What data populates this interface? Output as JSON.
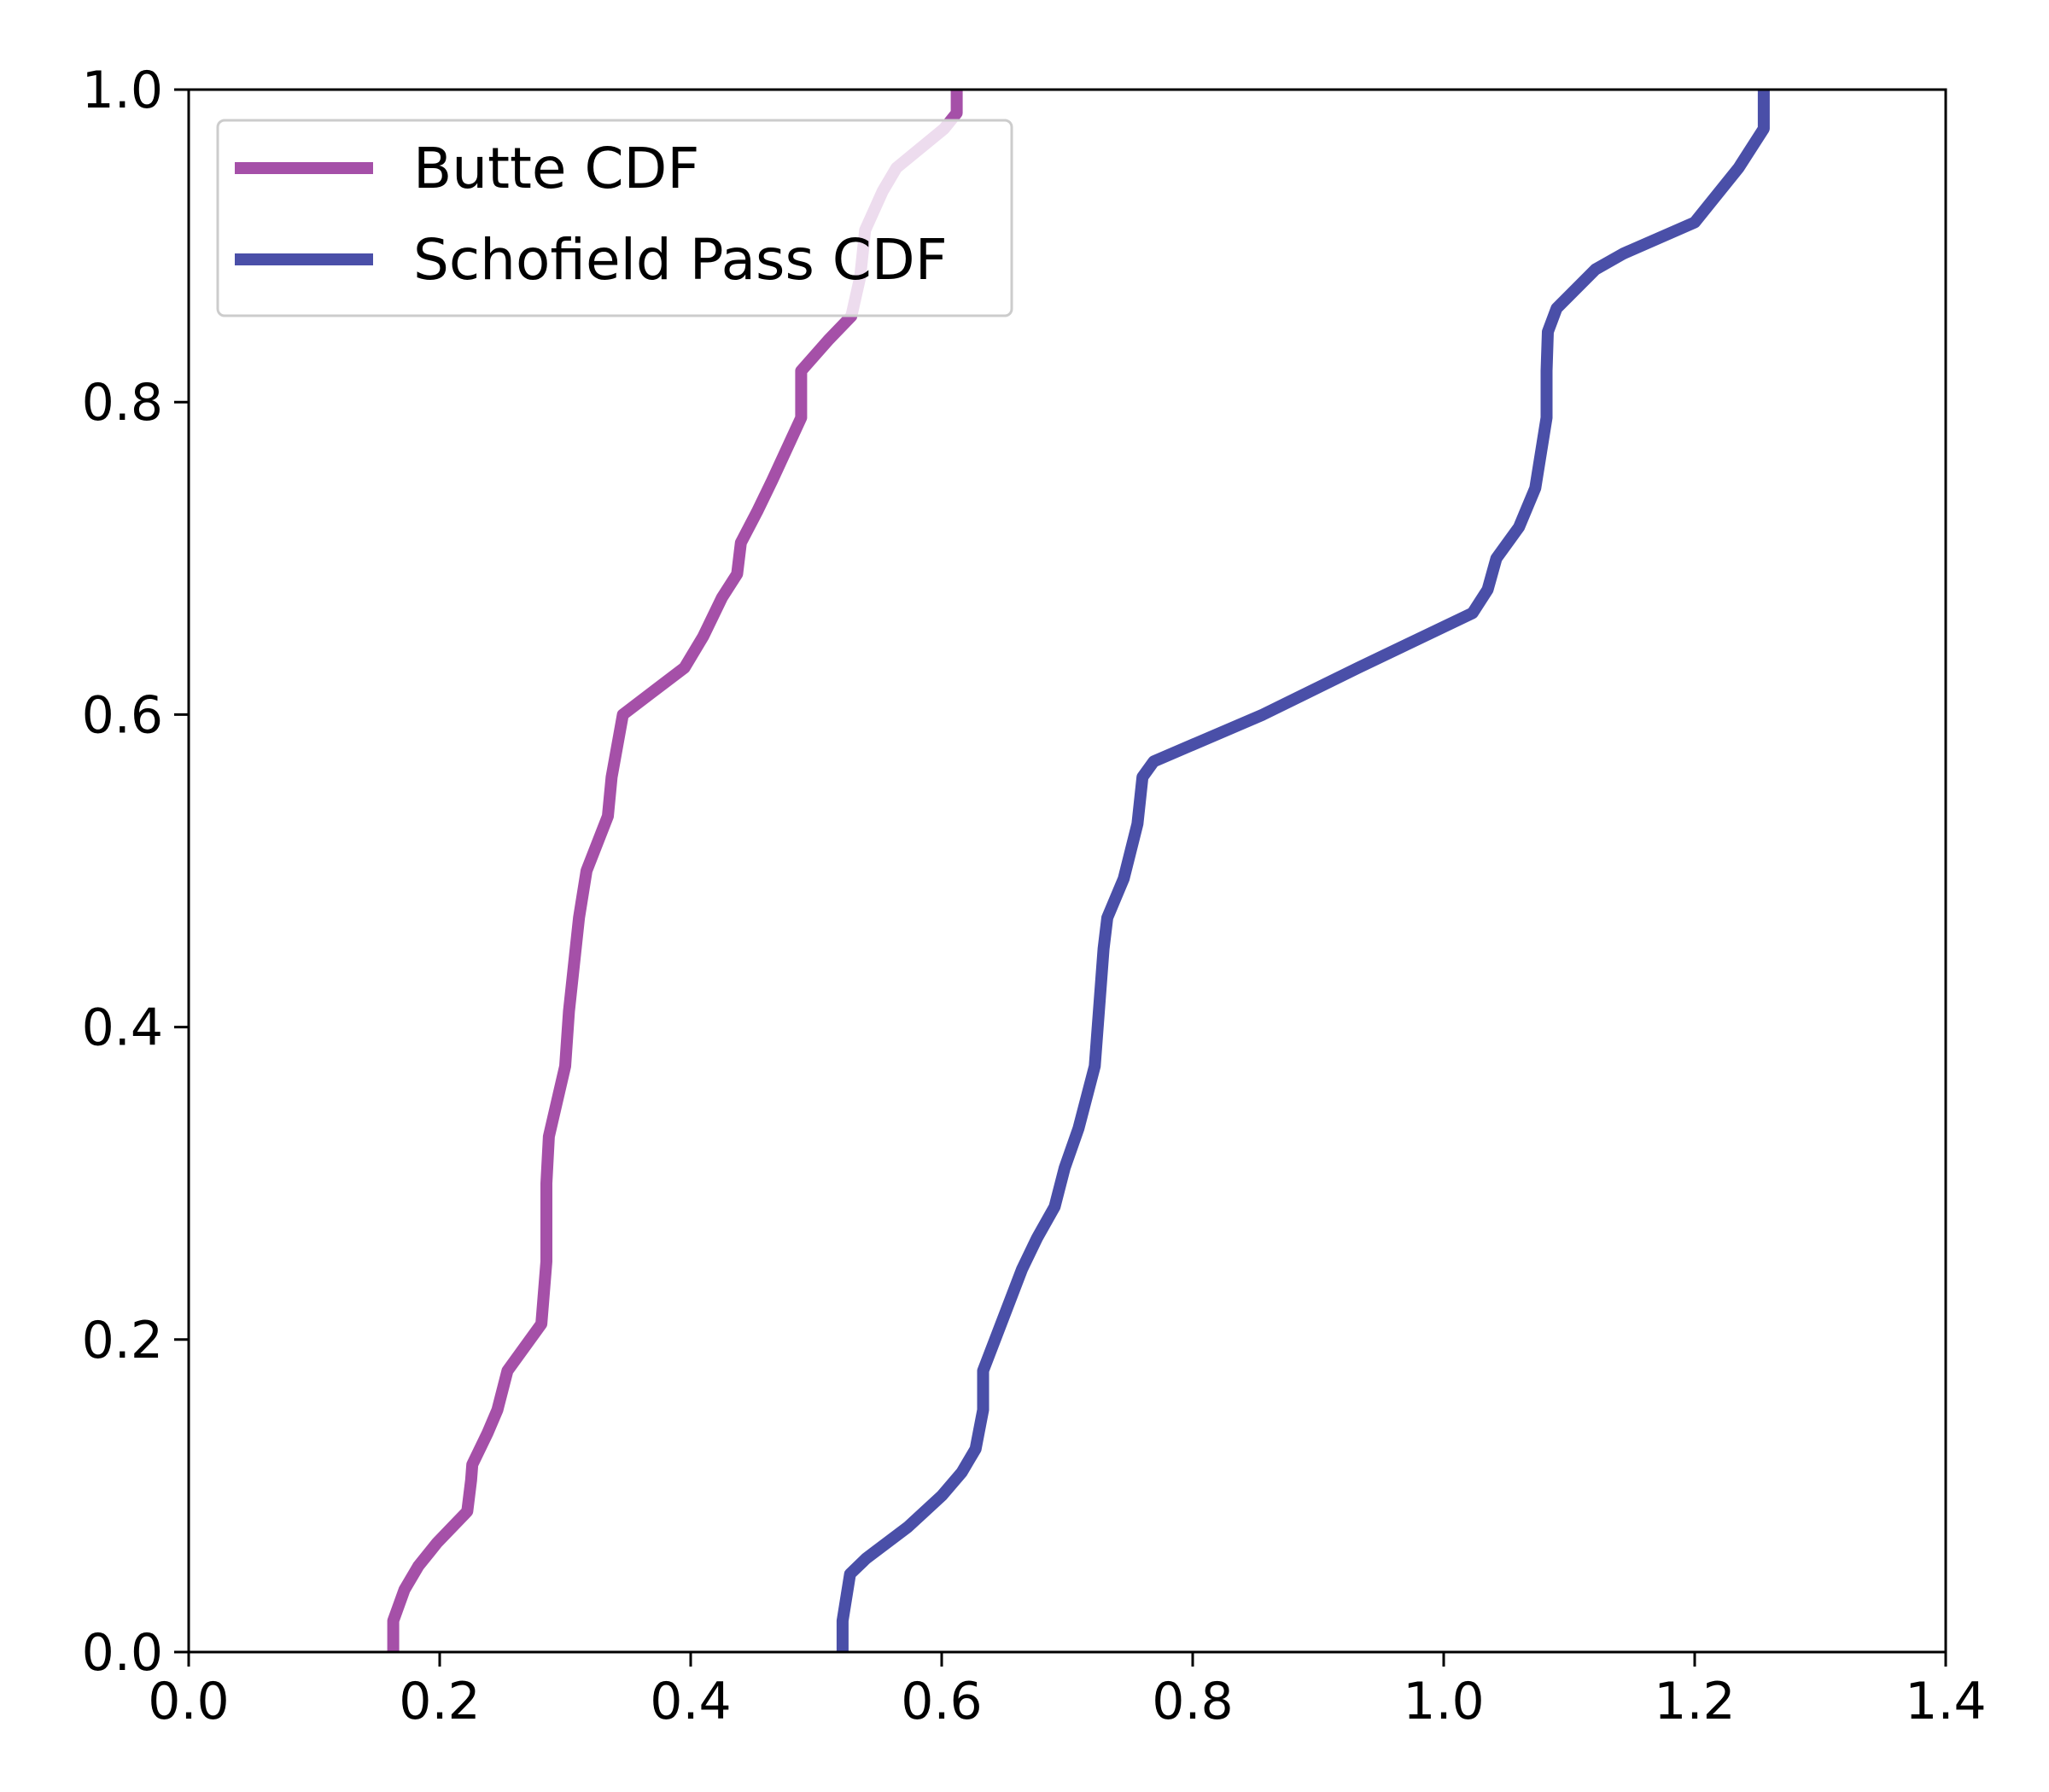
{
  "chart_data": {
    "type": "line",
    "title": "",
    "xlabel": "",
    "ylabel": "",
    "xlim": [
      0.0,
      1.4
    ],
    "ylim": [
      0.0,
      1.0
    ],
    "xticks": [
      "0.0",
      "0.2",
      "0.4",
      "0.6",
      "0.8",
      "1.0",
      "1.2",
      "1.4"
    ],
    "yticks": [
      "0.0",
      "0.2",
      "0.4",
      "0.6",
      "0.8",
      "1.0"
    ],
    "grid": false,
    "legend_position": "top-left",
    "series": [
      {
        "name": "Butte CDF",
        "color": "#a550a8",
        "points": [
          [
            0.163,
            0.0
          ],
          [
            0.163,
            0.02
          ],
          [
            0.172,
            0.04
          ],
          [
            0.183,
            0.055
          ],
          [
            0.198,
            0.07
          ],
          [
            0.222,
            0.09
          ],
          [
            0.225,
            0.11
          ],
          [
            0.226,
            0.12
          ],
          [
            0.238,
            0.14
          ],
          [
            0.246,
            0.155
          ],
          [
            0.254,
            0.18
          ],
          [
            0.281,
            0.21
          ],
          [
            0.285,
            0.25
          ],
          [
            0.285,
            0.3
          ],
          [
            0.287,
            0.33
          ],
          [
            0.3,
            0.375
          ],
          [
            0.303,
            0.41
          ],
          [
            0.311,
            0.47
          ],
          [
            0.317,
            0.5
          ],
          [
            0.334,
            0.535
          ],
          [
            0.337,
            0.56
          ],
          [
            0.346,
            0.6
          ],
          [
            0.395,
            0.63
          ],
          [
            0.41,
            0.65
          ],
          [
            0.425,
            0.675
          ],
          [
            0.437,
            0.69
          ],
          [
            0.44,
            0.71
          ],
          [
            0.453,
            0.73
          ],
          [
            0.465,
            0.75
          ],
          [
            0.488,
            0.79
          ],
          [
            0.488,
            0.82
          ],
          [
            0.51,
            0.84
          ],
          [
            0.528,
            0.855
          ],
          [
            0.535,
            0.88
          ],
          [
            0.539,
            0.91
          ],
          [
            0.553,
            0.935
          ],
          [
            0.564,
            0.95
          ],
          [
            0.602,
            0.975
          ],
          [
            0.612,
            0.985
          ],
          [
            0.612,
            1.0
          ]
        ]
      },
      {
        "name": "Schofield Pass CDF",
        "color": "#4a4fa8",
        "points": [
          [
            0.521,
            0.0
          ],
          [
            0.521,
            0.02
          ],
          [
            0.527,
            0.05
          ],
          [
            0.54,
            0.06
          ],
          [
            0.573,
            0.08
          ],
          [
            0.6,
            0.1
          ],
          [
            0.616,
            0.115
          ],
          [
            0.627,
            0.13
          ],
          [
            0.633,
            0.155
          ],
          [
            0.633,
            0.18
          ],
          [
            0.664,
            0.245
          ],
          [
            0.676,
            0.265
          ],
          [
            0.69,
            0.285
          ],
          [
            0.698,
            0.31
          ],
          [
            0.709,
            0.335
          ],
          [
            0.722,
            0.375
          ],
          [
            0.729,
            0.45
          ],
          [
            0.732,
            0.47
          ],
          [
            0.745,
            0.495
          ],
          [
            0.756,
            0.53
          ],
          [
            0.76,
            0.56
          ],
          [
            0.769,
            0.57
          ],
          [
            0.856,
            0.6
          ],
          [
            0.932,
            0.63
          ],
          [
            1.023,
            0.665
          ],
          [
            1.035,
            0.68
          ],
          [
            1.042,
            0.7
          ],
          [
            1.06,
            0.72
          ],
          [
            1.073,
            0.745
          ],
          [
            1.076,
            0.76
          ],
          [
            1.082,
            0.79
          ],
          [
            1.082,
            0.82
          ],
          [
            1.083,
            0.845
          ],
          [
            1.09,
            0.86
          ],
          [
            1.121,
            0.885
          ],
          [
            1.143,
            0.895
          ],
          [
            1.2,
            0.915
          ],
          [
            1.235,
            0.95
          ],
          [
            1.255,
            0.975
          ],
          [
            1.255,
            1.0
          ]
        ]
      }
    ]
  }
}
